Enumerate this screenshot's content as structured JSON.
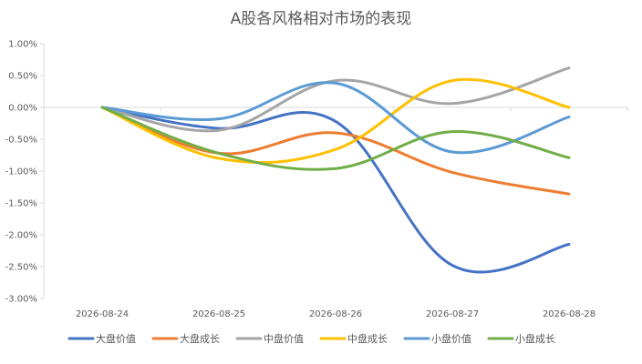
{
  "chart_data": {
    "type": "line",
    "title": "A股各风格相对市场的表现",
    "xlabel": "",
    "ylabel": "",
    "categories": [
      "2026-08-24",
      "2026-08-25",
      "2026-08-26",
      "2026-08-27",
      "2026-08-28"
    ],
    "ylim": [
      -3.0,
      1.0
    ],
    "yticks": [
      "1.00%",
      "0.50%",
      "0.00%",
      "-0.50%",
      "-1.00%",
      "-1.50%",
      "-2.00%",
      "-2.50%",
      "-3.00%"
    ],
    "grid": false,
    "smooth": true,
    "legend_position": "bottom",
    "series": [
      {
        "name": "大盘价值",
        "color": "#4472C4",
        "values": [
          0.0,
          -0.33,
          -0.22,
          -2.48,
          -2.15
        ]
      },
      {
        "name": "大盘成长",
        "color": "#ED7D31",
        "values": [
          0.0,
          -0.72,
          -0.4,
          -1.02,
          -1.36
        ]
      },
      {
        "name": "中盘价值",
        "color": "#A5A5A5",
        "values": [
          0.0,
          -0.36,
          0.42,
          0.06,
          0.62
        ]
      },
      {
        "name": "中盘成长",
        "color": "#FFC000",
        "values": [
          0.0,
          -0.8,
          -0.66,
          0.42,
          0.0
        ]
      },
      {
        "name": "小盘价值",
        "color": "#5B9BD5",
        "values": [
          0.0,
          -0.18,
          0.38,
          -0.7,
          -0.15
        ]
      },
      {
        "name": "小盘成长",
        "color": "#70AD47",
        "values": [
          0.0,
          -0.72,
          -0.96,
          -0.38,
          -0.79
        ]
      }
    ]
  }
}
